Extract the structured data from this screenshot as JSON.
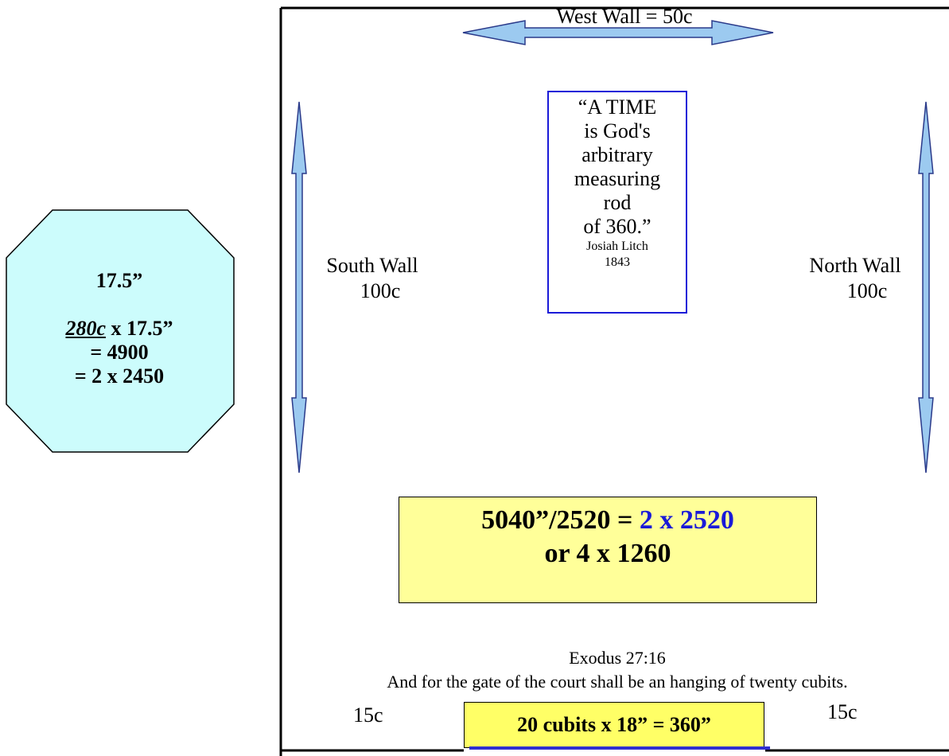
{
  "colors": {
    "arrow_fill": "#9ccaf0",
    "arrow_stroke": "#2a3a8a",
    "octagon_fill": "#ccfcfc",
    "quote_border": "#1a1ad8",
    "yellow_box": "#ffff99",
    "yellow_box_bottom": "#ffff66",
    "highlight_blue": "#1a1ad8"
  },
  "octagon": {
    "line1": "17.5”",
    "line2_prefix": "280c",
    "line2_suffix": " x 17.5”",
    "line3": "= 4900",
    "line4": "= 2 x 2450"
  },
  "walls": {
    "west": "West Wall = 50c",
    "south_name": "South Wall",
    "south_length": "100c",
    "north_name": "North Wall",
    "north_length": "100c"
  },
  "quote": {
    "text": "“A TIME\nis God's\narbitrary\nmeasuring\nrod\nof 360.”",
    "author": "Josiah Litch",
    "year": "1843"
  },
  "calc_box": {
    "line1_prefix": "5040”/2520 = ",
    "line1_highlight": "2 x 2520",
    "line2": "or 4 x 1260"
  },
  "scripture": {
    "reference": "Exodus 27:16",
    "text": "And for the gate of the court shall be an hanging of twenty cubits."
  },
  "gate": {
    "left_side": "15c",
    "right_side": "15c",
    "label": "20 cubits x 18” = 360”"
  }
}
